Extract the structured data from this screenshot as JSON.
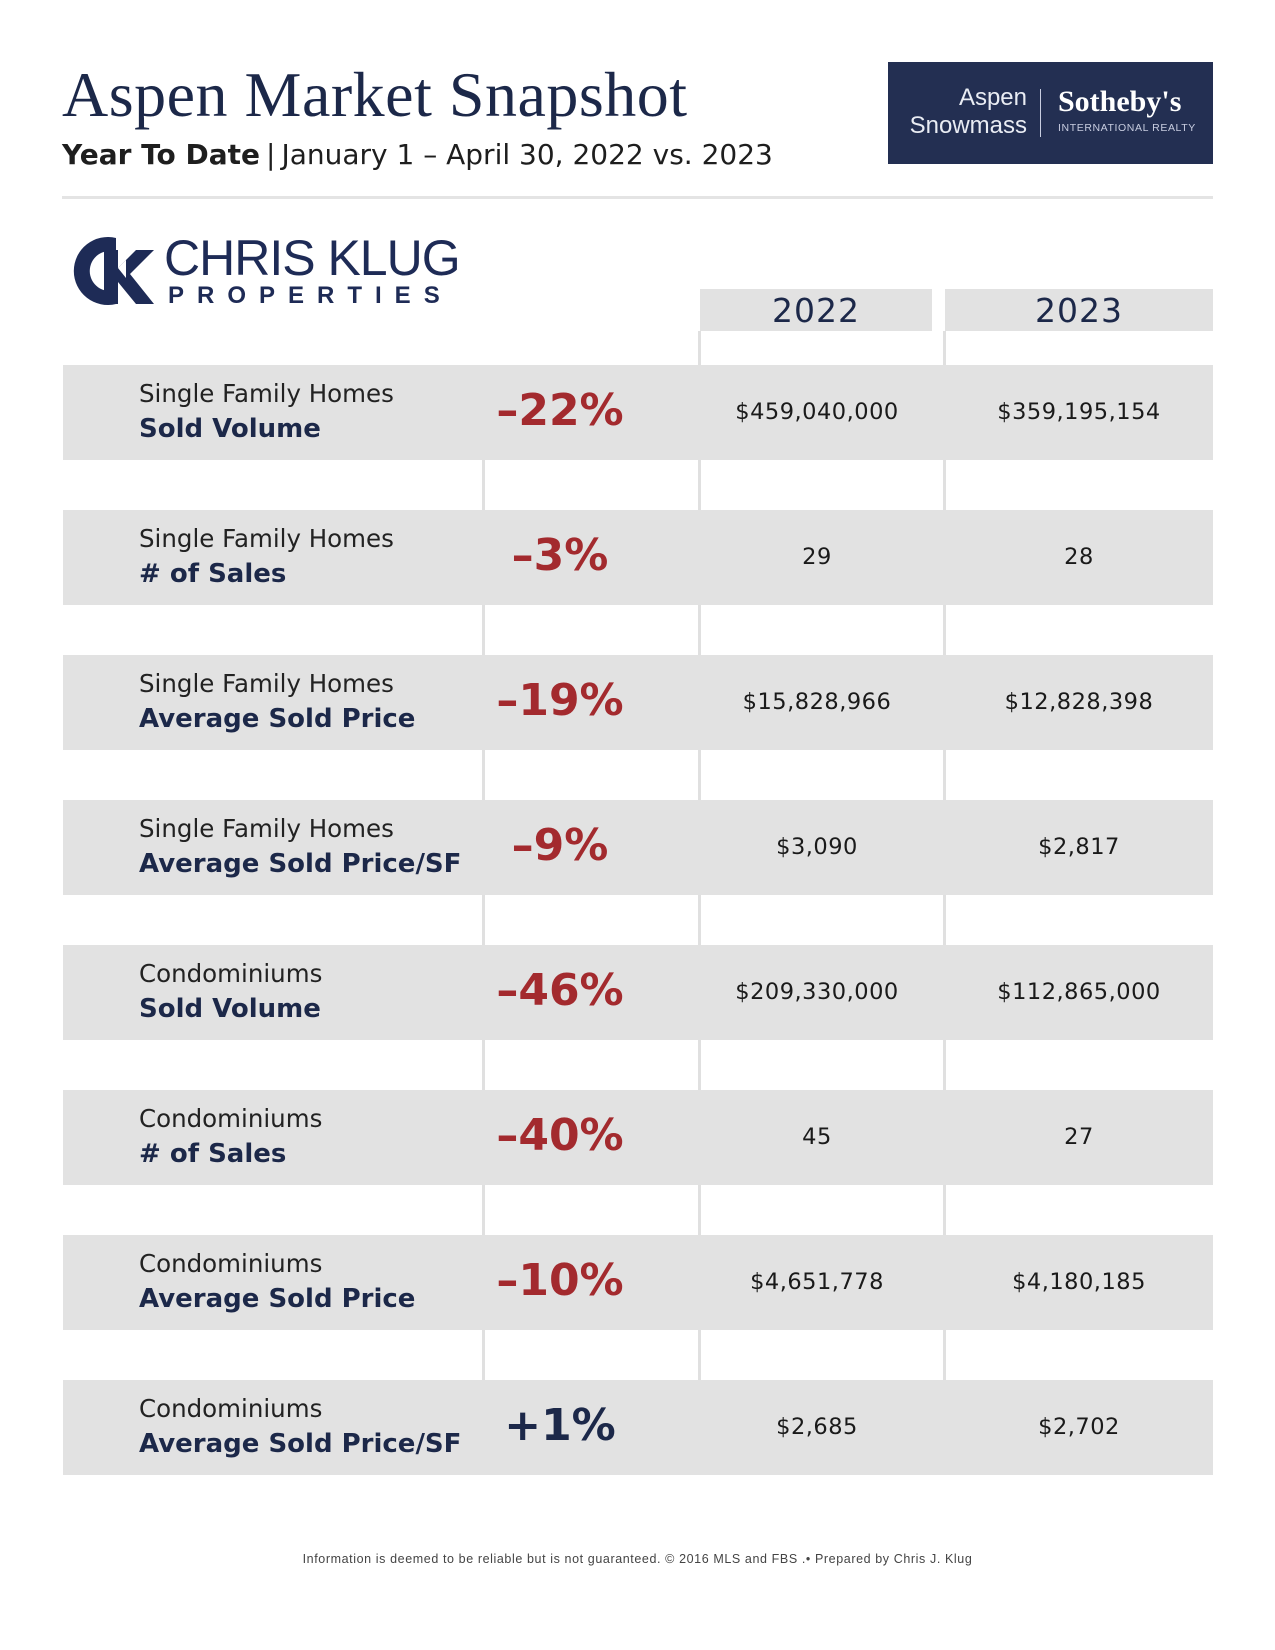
{
  "header": {
    "title": "Aspen Market Snapshot",
    "subtitle_bold": "Year To Date",
    "subtitle_separator": "|",
    "subtitle_range": "January 1 – April 30, 2022 vs. 2023"
  },
  "brand": {
    "line1": "Aspen",
    "line2": "Snowmass",
    "name": "Sotheby's",
    "tagline": "INTERNATIONAL REALTY",
    "color": "#232f52"
  },
  "agent_logo": {
    "mark": "CK",
    "name": "CHRIS KLUG",
    "sub": "PROPERTIES"
  },
  "table": {
    "year_headers": [
      "2022",
      "2023"
    ],
    "rows": [
      {
        "category": "Single Family Homes",
        "metric": "Sold Volume",
        "change": "–22%",
        "direction": "neg",
        "v2022": "$459,040,000",
        "v2023": "$359,195,154"
      },
      {
        "category": "Single Family Homes",
        "metric": "# of Sales",
        "change": "–3%",
        "direction": "neg",
        "v2022": "29",
        "v2023": "28"
      },
      {
        "category": "Single Family Homes",
        "metric": "Average Sold Price",
        "change": "–19%",
        "direction": "neg",
        "v2022": "$15,828,966",
        "v2023": "$12,828,398"
      },
      {
        "category": "Single Family Homes",
        "metric": "Average Sold Price/SF",
        "change": "–9%",
        "direction": "neg",
        "v2022": "$3,090",
        "v2023": "$2,817"
      },
      {
        "category": "Condominiums",
        "metric": "Sold Volume",
        "change": "–46%",
        "direction": "neg",
        "v2022": "$209,330,000",
        "v2023": "$112,865,000"
      },
      {
        "category": "Condominiums",
        "metric": "# of Sales",
        "change": "–40%",
        "direction": "neg",
        "v2022": "45",
        "v2023": "27"
      },
      {
        "category": "Condominiums",
        "metric": "Average Sold Price",
        "change": "–10%",
        "direction": "neg",
        "v2022": "$4,651,778",
        "v2023": "$4,180,185"
      },
      {
        "category": "Condominiums",
        "metric": "Average Sold Price/SF",
        "change": "+1%",
        "direction": "pos",
        "v2022": "$2,685",
        "v2023": "$2,702"
      }
    ]
  },
  "colors": {
    "navy": "#1c2849",
    "negative": "#a32a2e",
    "row_bg": "#e2e2e2"
  },
  "footer": {
    "text": "Information is deemed to be reliable but is not guaranteed. © 2016 MLS and FBS .• Prepared by Chris J. Klug"
  }
}
